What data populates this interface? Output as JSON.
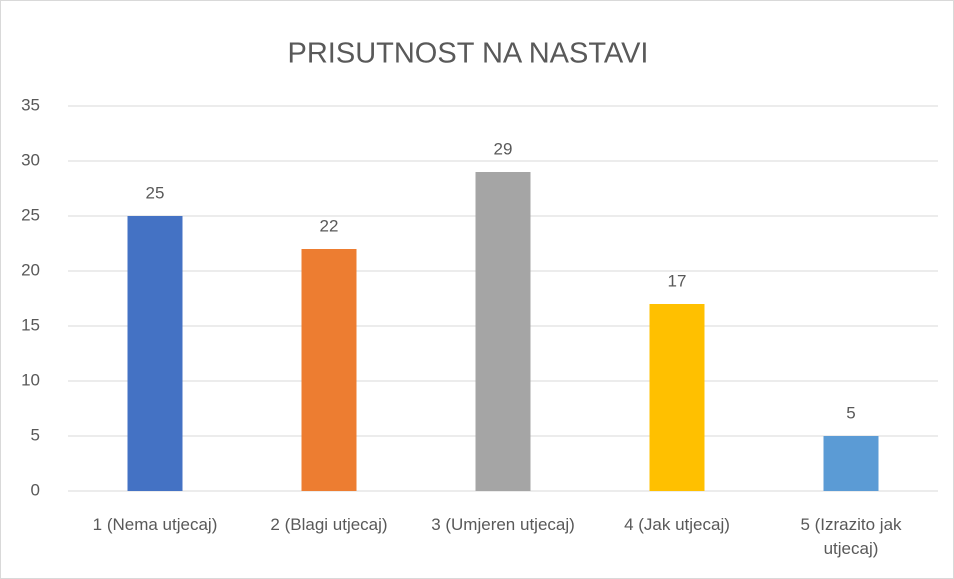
{
  "chart_data": {
    "type": "bar",
    "title": "PRISUTNOST NA NASTAVI",
    "categories": [
      "1 (Nema utjecaj)",
      "2 (Blagi utjecaj)",
      "3 (Umjeren utjecaj)",
      "4 (Jak utjecaj)",
      "5 (Izrazito jak utjecaj)"
    ],
    "values": [
      25,
      22,
      29,
      17,
      5
    ],
    "colors": [
      "#4472c4",
      "#ed7d31",
      "#a5a5a5",
      "#ffc000",
      "#5b9bd5"
    ],
    "ylim": [
      0,
      35
    ],
    "yticks": [
      0,
      5,
      10,
      15,
      20,
      25,
      30,
      35
    ],
    "grid": true
  }
}
